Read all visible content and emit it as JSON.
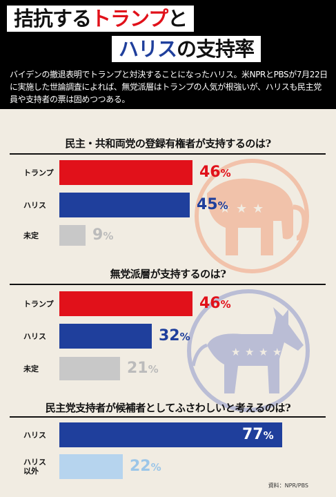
{
  "header": {
    "title_line1_a": "拮抗する",
    "title_line1_b": "トランプ",
    "title_line1_c": "と",
    "title_line2_a": "ハリス",
    "title_line2_b": "の支持率",
    "lead": "バイデンの撤退表明でトランプと対決することになったハリス。米NPRとPBSが7月22日に実施した世論調査によれば、無党派層はトランプの人気が根強いが、ハリスも民主党員や支持者の票は固めつつある。"
  },
  "colors": {
    "trump": "#e1111a",
    "harris": "#1f3f9c",
    "undecided": "#c8c8c8",
    "harris_other": "#b6d4ee",
    "header_bg": "#000000",
    "page_bg": "#f1ece2"
  },
  "chart_data": [
    {
      "type": "bar",
      "title": "民主・共和両党の登録有権者が支持するのは?",
      "categories": [
        "トランプ",
        "ハリス",
        "未定"
      ],
      "values": [
        46,
        45,
        9
      ],
      "unit": "%",
      "xlim": [
        0,
        100
      ]
    },
    {
      "type": "bar",
      "title": "無党派層が支持するのは?",
      "categories": [
        "トランプ",
        "ハリス",
        "未定"
      ],
      "values": [
        46,
        32,
        21
      ],
      "unit": "%",
      "xlim": [
        0,
        100
      ]
    },
    {
      "type": "bar",
      "title": "民主党支持者が候補者としてふさわしいと考えるのは?",
      "categories": [
        "ハリス",
        "ハリス以外"
      ],
      "category_lines": [
        [
          "ハリス"
        ],
        [
          "ハリス",
          "以外"
        ]
      ],
      "values": [
        77,
        22
      ],
      "unit": "%",
      "xlim": [
        0,
        100
      ]
    }
  ],
  "source": "資料：NPR/PBS"
}
